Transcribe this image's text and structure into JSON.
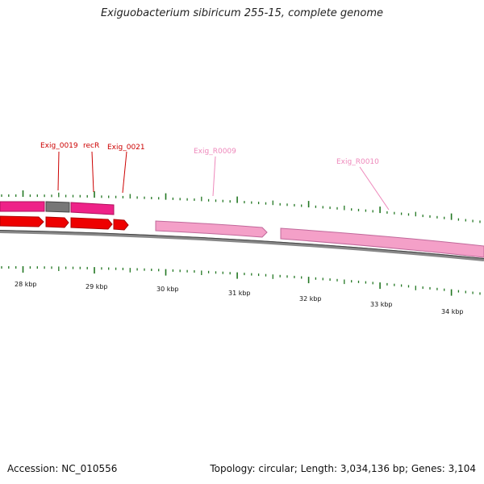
{
  "title": "Exiguobacterium sibiricum 255-15, complete genome",
  "footer": {
    "accession": "Accession: NC_010556",
    "summary": "Topology: circular; Length: 3,034,136 bp; Genes: 3,104"
  },
  "colors": {
    "gene_red": "#ee0000",
    "gene_magenta": "#ee2288",
    "gene_grey": "#777777",
    "rna_pink": "#f4a0c8",
    "tick_green": "#227722",
    "label_red": "#cc0000",
    "label_pink": "#ee88bb"
  },
  "gene_labels": [
    {
      "name": "Exig_0019",
      "color": "red"
    },
    {
      "name": "recR",
      "color": "red"
    },
    {
      "name": "Exig_0021",
      "color": "red"
    },
    {
      "name": "Exig_R0009",
      "color": "pink"
    },
    {
      "name": "Exig_R0010",
      "color": "pink"
    }
  ],
  "scale_labels": [
    "28 kbp",
    "29 kbp",
    "30 kbp",
    "31 kbp",
    "32 kbp",
    "33 kbp",
    "34 kbp"
  ]
}
